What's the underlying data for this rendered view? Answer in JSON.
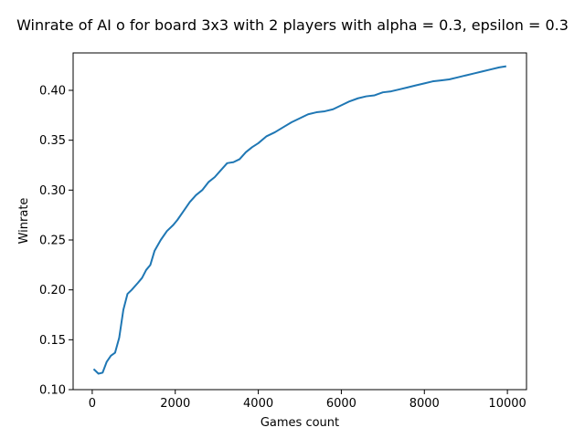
{
  "chart_data": {
    "type": "line",
    "title": "Winrate of AI o for board 3x3 with 2 players with alpha = 0.3, epsilon = 0.3",
    "xlabel": "Games count",
    "ylabel": "Winrate",
    "xlim": [
      -460,
      10460
    ],
    "ylim": [
      0.1,
      0.4375
    ],
    "xticks": [
      0,
      2000,
      4000,
      6000,
      8000,
      10000
    ],
    "xtick_labels": [
      "0",
      "2000",
      "4000",
      "6000",
      "8000",
      "10000"
    ],
    "yticks": [
      0.1,
      0.15,
      0.2,
      0.25,
      0.3,
      0.35,
      0.4
    ],
    "ytick_labels": [
      "0.10",
      "0.15",
      "0.20",
      "0.25",
      "0.30",
      "0.35",
      "0.40"
    ],
    "grid": false,
    "legend": "none",
    "series": [
      {
        "color": "#1f77b4",
        "x": [
          50,
          150,
          250,
          350,
          450,
          550,
          650,
          750,
          850,
          950,
          1100,
          1200,
          1300,
          1400,
          1500,
          1650,
          1800,
          1950,
          2050,
          2200,
          2350,
          2500,
          2650,
          2800,
          2950,
          3100,
          3250,
          3400,
          3550,
          3700,
          3850,
          4000,
          4200,
          4400,
          4600,
          4800,
          5000,
          5200,
          5400,
          5600,
          5800,
          6000,
          6200,
          6400,
          6600,
          6800,
          7000,
          7200,
          7400,
          7600,
          7800,
          8000,
          8200,
          8400,
          8600,
          8800,
          9000,
          9200,
          9400,
          9600,
          9800,
          9950
        ],
        "y": [
          0.12,
          0.116,
          0.117,
          0.128,
          0.134,
          0.137,
          0.152,
          0.18,
          0.196,
          0.2,
          0.207,
          0.212,
          0.22,
          0.225,
          0.239,
          0.25,
          0.259,
          0.265,
          0.27,
          0.279,
          0.288,
          0.295,
          0.3,
          0.308,
          0.313,
          0.32,
          0.327,
          0.328,
          0.331,
          0.338,
          0.343,
          0.347,
          0.354,
          0.358,
          0.363,
          0.368,
          0.372,
          0.376,
          0.378,
          0.379,
          0.381,
          0.385,
          0.389,
          0.392,
          0.394,
          0.395,
          0.398,
          0.399,
          0.401,
          0.403,
          0.405,
          0.407,
          0.409,
          0.41,
          0.411,
          0.413,
          0.415,
          0.417,
          0.419,
          0.421,
          0.423,
          0.424
        ]
      }
    ]
  }
}
